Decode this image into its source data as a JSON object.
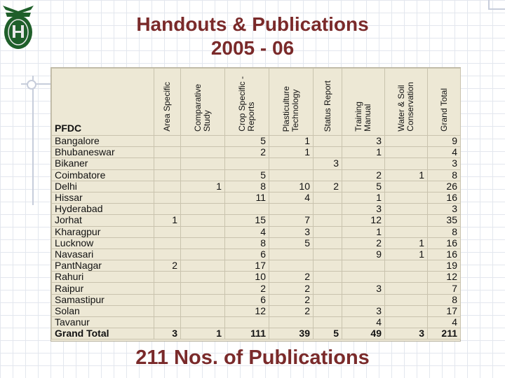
{
  "title": {
    "line1": "Handouts & Publications",
    "line2": "2005 - 06"
  },
  "colors": {
    "title": "#7a2a2a",
    "table_bg": "#ede8d5",
    "logo_green": "#1f5f2a"
  },
  "table": {
    "first_header": "PFDC",
    "columns": [
      "Area Specific",
      "Comparative\nStudy",
      "Crop Specific -\nReports",
      "Plasticulture\nTechnology",
      "Status Report",
      "Training\nManual",
      "Water & Soil\nConservation",
      "Grand Total"
    ],
    "rows": [
      {
        "name": "Bangalore",
        "cells": [
          "",
          "",
          "5",
          "1",
          "",
          "3",
          "",
          "9"
        ]
      },
      {
        "name": "Bhubaneswar",
        "cells": [
          "",
          "",
          "2",
          "1",
          "",
          "1",
          "",
          "4"
        ]
      },
      {
        "name": "Bikaner",
        "cells": [
          "",
          "",
          "",
          "",
          "3",
          "",
          "",
          "3"
        ]
      },
      {
        "name": "Coimbatore",
        "cells": [
          "",
          "",
          "5",
          "",
          "",
          "2",
          "1",
          "8"
        ]
      },
      {
        "name": "Delhi",
        "cells": [
          "",
          "1",
          "8",
          "10",
          "2",
          "5",
          "",
          "26"
        ]
      },
      {
        "name": "Hissar",
        "cells": [
          "",
          "",
          "11",
          "4",
          "",
          "1",
          "",
          "16"
        ]
      },
      {
        "name": "Hyderabad",
        "cells": [
          "",
          "",
          "",
          "",
          "",
          "3",
          "",
          "3"
        ]
      },
      {
        "name": "Jorhat",
        "cells": [
          "1",
          "",
          "15",
          "7",
          "",
          "12",
          "",
          "35"
        ]
      },
      {
        "name": "Kharagpur",
        "cells": [
          "",
          "",
          "4",
          "3",
          "",
          "1",
          "",
          "8"
        ]
      },
      {
        "name": "Lucknow",
        "cells": [
          "",
          "",
          "8",
          "5",
          "",
          "2",
          "1",
          "16"
        ]
      },
      {
        "name": "Navasari",
        "cells": [
          "",
          "",
          "6",
          "",
          "",
          "9",
          "1",
          "16"
        ]
      },
      {
        "name": "PantNagar",
        "cells": [
          "2",
          "",
          "17",
          "",
          "",
          "",
          "",
          "19"
        ]
      },
      {
        "name": "Rahuri",
        "cells": [
          "",
          "",
          "10",
          "2",
          "",
          "",
          "",
          "12"
        ]
      },
      {
        "name": "Raipur",
        "cells": [
          "",
          "",
          "2",
          "2",
          "",
          "3",
          "",
          "7"
        ]
      },
      {
        "name": "Samastipur",
        "cells": [
          "",
          "",
          "6",
          "2",
          "",
          "",
          "",
          "8"
        ]
      },
      {
        "name": "Solan",
        "cells": [
          "",
          "",
          "12",
          "2",
          "",
          "3",
          "",
          "17"
        ]
      },
      {
        "name": "Tavanur",
        "cells": [
          "",
          "",
          "",
          "",
          "",
          "4",
          "",
          "4"
        ]
      }
    ],
    "total": {
      "name": "Grand Total",
      "cells": [
        "3",
        "1",
        "111",
        "39",
        "5",
        "49",
        "3",
        "211"
      ]
    }
  },
  "footer": "211 Nos. of Publications"
}
